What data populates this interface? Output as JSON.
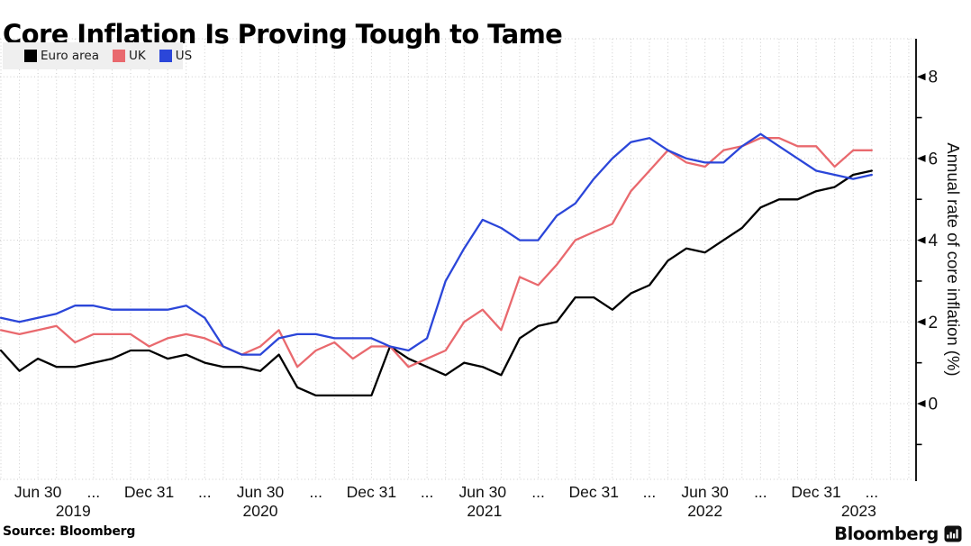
{
  "title": "Core Inflation Is Proving Tough to Tame",
  "source": "Source: Bloomberg",
  "brand": {
    "wordmark": "Bloomberg",
    "icon": "bloomberg-terminal-icon"
  },
  "colors": {
    "euro_area": "#000000",
    "uk": "#e9696e",
    "us": "#2b46d9",
    "grid": "#cccccc",
    "legend_bg": "#efefef"
  },
  "legend": {
    "items": [
      {
        "label": "Euro area",
        "color": "#000000"
      },
      {
        "label": "UK",
        "color": "#e9696e"
      },
      {
        "label": "US",
        "color": "#2b46d9"
      }
    ]
  },
  "chart_data": {
    "type": "line",
    "title": "Core Inflation Is Proving Tough to Tame",
    "xlabel": "",
    "ylabel": "Annual rate of core inflation (%)",
    "x_unit": "month",
    "grid": "dotted",
    "legend_position": "top-left",
    "ylim": [
      -1.9,
      8.9
    ],
    "categories": [
      "Apr 2019",
      "May 2019",
      "Jun 2019",
      "Jul 2019",
      "Aug 2019",
      "Sep 2019",
      "Oct 2019",
      "Nov 2019",
      "Dec 2019",
      "Jan 2020",
      "Feb 2020",
      "Mar 2020",
      "Apr 2020",
      "May 2020",
      "Jun 2020",
      "Jul 2020",
      "Aug 2020",
      "Sep 2020",
      "Oct 2020",
      "Nov 2020",
      "Dec 2020",
      "Jan 2021",
      "Feb 2021",
      "Mar 2021",
      "Apr 2021",
      "May 2021",
      "Jun 2021",
      "Jul 2021",
      "Aug 2021",
      "Sep 2021",
      "Oct 2021",
      "Nov 2021",
      "Dec 2021",
      "Jan 2022",
      "Feb 2022",
      "Mar 2022",
      "Apr 2022",
      "May 2022",
      "Jun 2022",
      "Jul 2022",
      "Aug 2022",
      "Sep 2022",
      "Oct 2022",
      "Nov 2022",
      "Dec 2022",
      "Jan 2023",
      "Feb 2023",
      "Mar 2023"
    ],
    "series": [
      {
        "name": "Euro area",
        "color": "#000000",
        "values": [
          1.3,
          0.8,
          1.1,
          0.9,
          0.9,
          1.0,
          1.1,
          1.3,
          1.3,
          1.1,
          1.2,
          1.0,
          0.9,
          0.9,
          0.8,
          1.2,
          0.4,
          0.2,
          0.2,
          0.2,
          0.2,
          1.4,
          1.1,
          0.9,
          0.7,
          1.0,
          0.9,
          0.7,
          1.6,
          1.9,
          2.0,
          2.6,
          2.6,
          2.3,
          2.7,
          2.9,
          3.5,
          3.8,
          3.7,
          4.0,
          4.3,
          4.8,
          5.0,
          5.0,
          5.2,
          5.3,
          5.6,
          5.7
        ]
      },
      {
        "name": "UK",
        "color": "#e9696e",
        "values": [
          1.8,
          1.7,
          1.8,
          1.9,
          1.5,
          1.7,
          1.7,
          1.7,
          1.4,
          1.6,
          1.7,
          1.6,
          1.4,
          1.2,
          1.4,
          1.8,
          0.9,
          1.3,
          1.5,
          1.1,
          1.4,
          1.4,
          0.9,
          1.1,
          1.3,
          2.0,
          2.3,
          1.8,
          3.1,
          2.9,
          3.4,
          4.0,
          4.2,
          4.4,
          5.2,
          5.7,
          6.2,
          5.9,
          5.8,
          6.2,
          6.3,
          6.5,
          6.5,
          6.3,
          6.3,
          5.8,
          6.2,
          6.2
        ]
      },
      {
        "name": "US",
        "color": "#2b46d9",
        "values": [
          2.1,
          2.0,
          2.1,
          2.2,
          2.4,
          2.4,
          2.3,
          2.3,
          2.3,
          2.3,
          2.4,
          2.1,
          1.4,
          1.2,
          1.2,
          1.6,
          1.7,
          1.7,
          1.6,
          1.6,
          1.6,
          1.4,
          1.3,
          1.6,
          3.0,
          3.8,
          4.5,
          4.3,
          4.0,
          4.0,
          4.6,
          4.9,
          5.5,
          6.0,
          6.4,
          6.5,
          6.2,
          6.0,
          5.9,
          5.9,
          6.3,
          6.6,
          6.3,
          6.0,
          5.7,
          5.6,
          5.5,
          5.6
        ]
      }
    ],
    "yaxis": {
      "side": "right",
      "grid_values": [
        0,
        2,
        4,
        6,
        8
      ],
      "minor_tick_values": [
        -1,
        1,
        3,
        5,
        7
      ],
      "ticks": [
        {
          "label": "0",
          "value": 0
        },
        {
          "label": "2",
          "value": 2
        },
        {
          "label": "4",
          "value": 4
        },
        {
          "label": "6",
          "value": 6
        },
        {
          "label": "8",
          "value": 8
        }
      ]
    },
    "xaxis": {
      "tick_labels": [
        {
          "label": "Jun 30",
          "month_index": 2
        },
        {
          "label": "...",
          "month_index": 5
        },
        {
          "label": "Dec 31",
          "month_index": 8
        },
        {
          "label": "...",
          "month_index": 11
        },
        {
          "label": "Jun 30",
          "month_index": 14
        },
        {
          "label": "...",
          "month_index": 17
        },
        {
          "label": "Dec 31",
          "month_index": 20
        },
        {
          "label": "...",
          "month_index": 23
        },
        {
          "label": "Jun 30",
          "month_index": 26
        },
        {
          "label": "...",
          "month_index": 29
        },
        {
          "label": "Dec 31",
          "month_index": 32
        },
        {
          "label": "...",
          "month_index": 35
        },
        {
          "label": "Jun 30",
          "month_index": 38
        },
        {
          "label": "...",
          "month_index": 41
        },
        {
          "label": "Dec 31",
          "month_index": 44
        },
        {
          "label": "...",
          "month_index": 47
        }
      ],
      "year_labels": [
        {
          "label": "2019",
          "month_index": 3.9
        },
        {
          "label": "2020",
          "month_index": 14
        },
        {
          "label": "2021",
          "month_index": 26.1
        },
        {
          "label": "2022",
          "month_index": 38
        },
        {
          "label": "2023",
          "month_index": 46.3
        }
      ]
    }
  }
}
